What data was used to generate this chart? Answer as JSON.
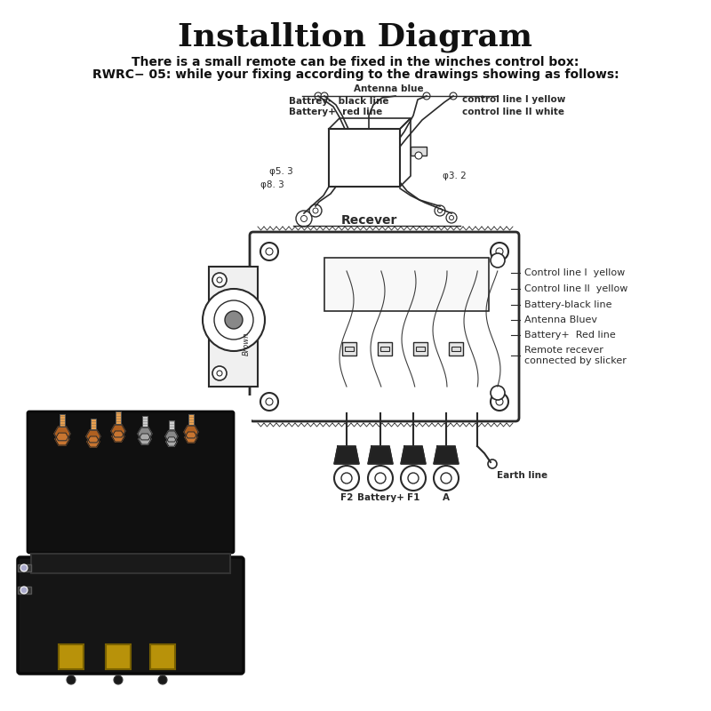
{
  "title": "Installtion Diagram",
  "title_fontsize": 26,
  "subtitle1": "There is a small remote can be fixed in the winches control box:",
  "subtitle2": "RWRC− 05: while your fixing according to the drawings showing as follows:",
  "subtitle_fontsize": 10,
  "bg_color": "#ffffff",
  "dc": "#2a2a2a",
  "top_labels": {
    "antenna_blue": "Antenna blue",
    "control_line_I_yellow": "control line I yellow",
    "battery_black": "Battrey-  black line",
    "battery_red": "Battery+  red line",
    "control_line_II_white": "control line II white",
    "phi53": "φ5. 3",
    "phi83": "φ8. 3",
    "phi32": "φ3. 2"
  },
  "receiver_label": "Recever",
  "right_labels": [
    "Control line l  yellow",
    "Control line ll  yellow",
    "Battery-black line",
    "Antenna Bluev",
    "Battery+  Red line",
    "Remote recever\nconnected by slicker"
  ],
  "bottom_labels": [
    "F2",
    "Battery+",
    "F1",
    "A",
    "Earth line"
  ]
}
